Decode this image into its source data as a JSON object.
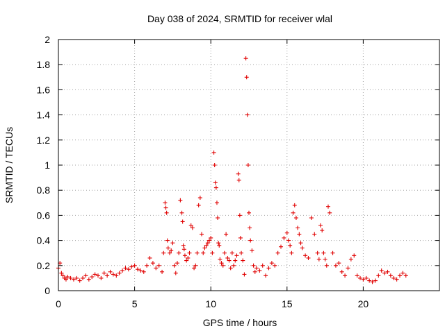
{
  "chart_data": {
    "type": "scatter",
    "title": "Day 038 of 2024, SRMTID for receiver wlal",
    "xlabel": "GPS time / hours",
    "ylabel": "SRMTID / TECUs",
    "xlim": [
      0,
      25
    ],
    "ylim": [
      0,
      2
    ],
    "x_ticks": [
      0,
      5,
      10,
      15,
      20
    ],
    "x_tick_labels": [
      "0",
      "5",
      "10",
      "15",
      "20"
    ],
    "y_ticks": [
      0,
      0.2,
      0.4,
      0.6,
      0.8,
      1,
      1.2,
      1.4,
      1.6,
      1.8,
      2
    ],
    "y_tick_labels": [
      "0",
      "0.2",
      "0.4",
      "0.6",
      "0.8",
      "1",
      "1.2",
      "1.4",
      "1.6",
      "1.8",
      "2"
    ],
    "grid": true,
    "marker": "+",
    "color": "#e00000",
    "series": [
      {
        "name": "SRMTID",
        "x": [
          0.0,
          0.1,
          0.2,
          0.3,
          0.4,
          0.5,
          0.6,
          0.8,
          1.0,
          1.2,
          1.4,
          1.6,
          1.8,
          2.0,
          2.2,
          2.4,
          2.6,
          2.8,
          3.0,
          3.2,
          3.4,
          3.6,
          3.8,
          4.0,
          4.2,
          4.4,
          4.6,
          4.8,
          5.0,
          5.2,
          5.4,
          5.6,
          5.8,
          6.0,
          6.2,
          6.4,
          6.6,
          6.8,
          6.9,
          7.0,
          7.05,
          7.1,
          7.15,
          7.2,
          7.3,
          7.4,
          7.5,
          7.6,
          7.7,
          7.8,
          7.9,
          8.0,
          8.1,
          8.15,
          8.2,
          8.25,
          8.3,
          8.4,
          8.5,
          8.6,
          8.7,
          8.8,
          8.9,
          9.0,
          9.1,
          9.2,
          9.3,
          9.4,
          9.5,
          9.6,
          9.7,
          9.8,
          9.9,
          10.0,
          10.1,
          10.2,
          10.25,
          10.3,
          10.35,
          10.4,
          10.45,
          10.5,
          10.55,
          10.6,
          10.7,
          10.8,
          10.9,
          11.0,
          11.1,
          11.2,
          11.3,
          11.4,
          11.5,
          11.6,
          11.7,
          11.8,
          11.85,
          11.9,
          11.95,
          12.0,
          12.1,
          12.2,
          12.3,
          12.35,
          12.4,
          12.45,
          12.5,
          12.55,
          12.6,
          12.7,
          12.8,
          12.9,
          13.0,
          13.2,
          13.4,
          13.6,
          13.8,
          14.0,
          14.2,
          14.4,
          14.6,
          14.8,
          15.0,
          15.1,
          15.2,
          15.3,
          15.4,
          15.5,
          15.6,
          15.7,
          15.8,
          15.9,
          16.0,
          16.2,
          16.4,
          16.6,
          16.8,
          17.0,
          17.1,
          17.2,
          17.3,
          17.4,
          17.5,
          17.6,
          17.7,
          17.8,
          18.0,
          18.2,
          18.4,
          18.6,
          18.8,
          19.0,
          19.2,
          19.4,
          19.6,
          19.8,
          20.0,
          20.2,
          20.4,
          20.6,
          20.8,
          21.0,
          21.2,
          21.4,
          21.6,
          21.8,
          22.0,
          22.2,
          22.4,
          22.6,
          22.8
        ],
        "y": [
          0.18,
          0.22,
          0.14,
          0.12,
          0.1,
          0.09,
          0.11,
          0.1,
          0.09,
          0.1,
          0.08,
          0.1,
          0.12,
          0.09,
          0.11,
          0.13,
          0.12,
          0.1,
          0.14,
          0.12,
          0.15,
          0.13,
          0.12,
          0.14,
          0.16,
          0.18,
          0.17,
          0.19,
          0.2,
          0.17,
          0.16,
          0.15,
          0.2,
          0.26,
          0.22,
          0.18,
          0.2,
          0.15,
          0.3,
          0.7,
          0.66,
          0.62,
          0.4,
          0.34,
          0.3,
          0.32,
          0.38,
          0.2,
          0.14,
          0.22,
          0.3,
          0.72,
          0.62,
          0.55,
          0.36,
          0.33,
          0.28,
          0.24,
          0.26,
          0.3,
          0.52,
          0.5,
          0.18,
          0.2,
          0.3,
          0.68,
          0.74,
          0.45,
          0.3,
          0.34,
          0.36,
          0.38,
          0.4,
          0.42,
          0.3,
          1.1,
          1.0,
          0.86,
          0.82,
          0.7,
          0.58,
          0.38,
          0.36,
          0.25,
          0.22,
          0.2,
          0.3,
          0.45,
          0.26,
          0.24,
          0.18,
          0.3,
          0.2,
          0.24,
          0.28,
          0.93,
          0.88,
          0.6,
          0.42,
          0.3,
          0.24,
          0.13,
          1.85,
          1.7,
          1.4,
          1.0,
          0.62,
          0.5,
          0.4,
          0.32,
          0.2,
          0.15,
          0.18,
          0.16,
          0.2,
          0.12,
          0.18,
          0.22,
          0.2,
          0.3,
          0.35,
          0.42,
          0.46,
          0.4,
          0.36,
          0.3,
          0.62,
          0.68,
          0.58,
          0.5,
          0.45,
          0.38,
          0.34,
          0.28,
          0.26,
          0.58,
          0.45,
          0.3,
          0.25,
          0.52,
          0.48,
          0.3,
          0.25,
          0.2,
          0.67,
          0.62,
          0.3,
          0.2,
          0.22,
          0.15,
          0.12,
          0.18,
          0.25,
          0.28,
          0.12,
          0.1,
          0.09,
          0.1,
          0.08,
          0.07,
          0.08,
          0.12,
          0.16,
          0.14,
          0.15,
          0.12,
          0.1,
          0.09,
          0.12,
          0.14,
          0.12
        ]
      }
    ]
  }
}
